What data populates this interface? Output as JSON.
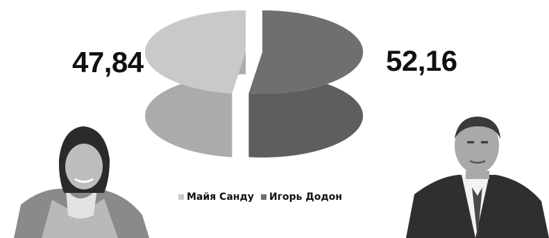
{
  "chart_data": {
    "type": "pie",
    "style": "3d-exploded",
    "title": "",
    "categories": [
      "Майя Санду",
      "Игорь Додон"
    ],
    "values": [
      47.84,
      52.16
    ],
    "value_labels": [
      "47,84",
      "52,16"
    ],
    "colors": [
      "#c9c9c9",
      "#6f6f6f"
    ],
    "legend": "bottom-center"
  },
  "legend": {
    "items": [
      {
        "label": "Майя Санду",
        "color": "#c9c9c9"
      },
      {
        "label": "Игорь Додон",
        "color": "#6f6f6f"
      }
    ]
  },
  "photos": {
    "left_icon": "woman-portrait-icon",
    "right_icon": "man-portrait-icon"
  }
}
